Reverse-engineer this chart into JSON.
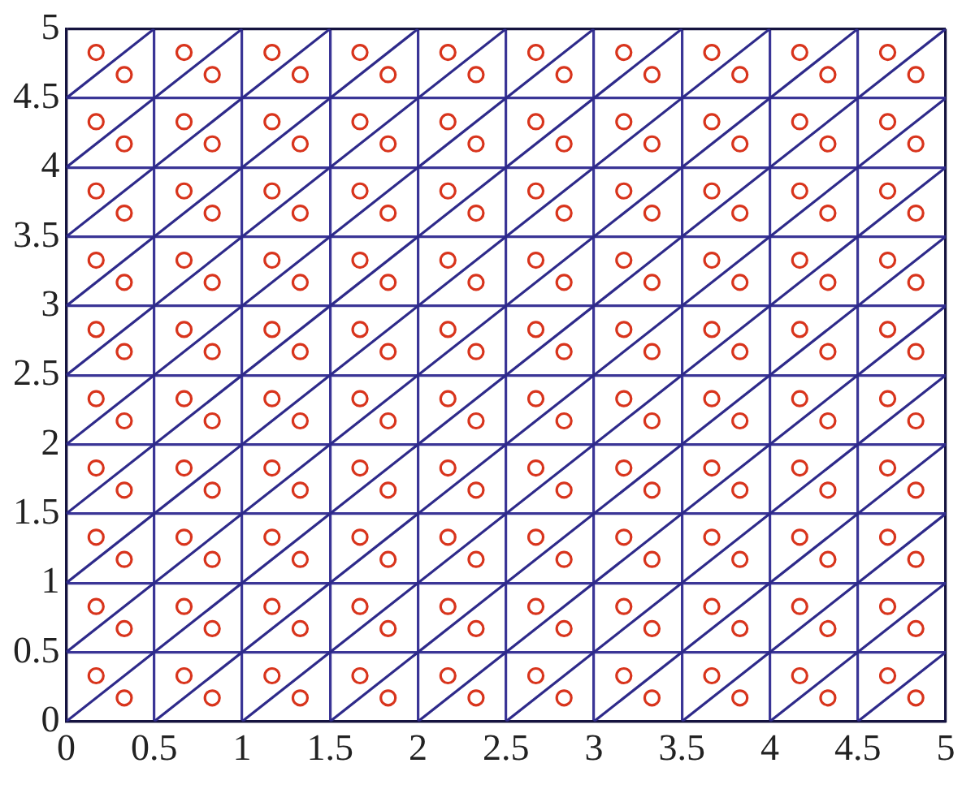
{
  "chart_data": {
    "type": "scatter",
    "marker": "circle",
    "grid": true,
    "xlim": [
      0,
      5
    ],
    "ylim": [
      0,
      5
    ],
    "xticks": [
      0,
      0.5,
      1,
      1.5,
      2,
      2.5,
      3,
      3.5,
      4,
      4.5,
      5
    ],
    "yticks": [
      0,
      0.5,
      1,
      1.5,
      2,
      2.5,
      3,
      3.5,
      4,
      4.5,
      5
    ],
    "series": [
      {
        "type": "line",
        "marker": "none",
        "color": "#2e2a8a",
        "x": [
          4.5,
          5
        ],
        "values": [
          0,
          0.5
        ]
      },
      {
        "type": "line",
        "marker": "none",
        "color": "#2e2a8a",
        "x": [
          4,
          5
        ],
        "values": [
          0,
          1
        ]
      },
      {
        "type": "line",
        "marker": "none",
        "color": "#2e2a8a",
        "x": [
          3.5,
          5
        ],
        "values": [
          0,
          1.5
        ]
      },
      {
        "type": "line",
        "marker": "none",
        "color": "#2e2a8a",
        "x": [
          3,
          5
        ],
        "values": [
          0,
          2
        ]
      },
      {
        "type": "line",
        "marker": "none",
        "color": "#2e2a8a",
        "x": [
          2.5,
          5
        ],
        "values": [
          0,
          2.5
        ]
      },
      {
        "type": "line",
        "marker": "none",
        "color": "#2e2a8a",
        "x": [
          2,
          5
        ],
        "values": [
          0,
          3
        ]
      },
      {
        "type": "line",
        "marker": "none",
        "color": "#2e2a8a",
        "x": [
          1.5,
          5
        ],
        "values": [
          0,
          3.5
        ]
      },
      {
        "type": "line",
        "marker": "none",
        "color": "#2e2a8a",
        "x": [
          1,
          5
        ],
        "values": [
          0,
          4
        ]
      },
      {
        "type": "line",
        "marker": "none",
        "color": "#2e2a8a",
        "x": [
          0.5,
          5
        ],
        "values": [
          0,
          4.5
        ]
      },
      {
        "type": "line",
        "marker": "none",
        "color": "#2e2a8a",
        "x": [
          0,
          5
        ],
        "values": [
          0,
          5
        ]
      },
      {
        "type": "line",
        "marker": "none",
        "color": "#2e2a8a",
        "x": [
          0,
          4.5
        ],
        "values": [
          0.5,
          5
        ]
      },
      {
        "type": "line",
        "marker": "none",
        "color": "#2e2a8a",
        "x": [
          0,
          4
        ],
        "values": [
          1,
          5
        ]
      },
      {
        "type": "line",
        "marker": "none",
        "color": "#2e2a8a",
        "x": [
          0,
          3.5
        ],
        "values": [
          1.5,
          5
        ]
      },
      {
        "type": "line",
        "marker": "none",
        "color": "#2e2a8a",
        "x": [
          0,
          3
        ],
        "values": [
          2,
          5
        ]
      },
      {
        "type": "line",
        "marker": "none",
        "color": "#2e2a8a",
        "x": [
          0,
          2.5
        ],
        "values": [
          2.5,
          5
        ]
      },
      {
        "type": "line",
        "marker": "none",
        "color": "#2e2a8a",
        "x": [
          0,
          2
        ],
        "values": [
          3,
          5
        ]
      },
      {
        "type": "line",
        "marker": "none",
        "color": "#2e2a8a",
        "x": [
          0,
          1.5
        ],
        "values": [
          3.5,
          5
        ]
      },
      {
        "type": "line",
        "marker": "none",
        "color": "#2e2a8a",
        "x": [
          0,
          1
        ],
        "values": [
          4,
          5
        ]
      },
      {
        "type": "line",
        "marker": "none",
        "color": "#2e2a8a",
        "x": [
          0,
          0.5
        ],
        "values": [
          4.5,
          5
        ]
      },
      {
        "color": "#d8341c",
        "x": [
          0.17,
          0.67,
          1.17,
          1.67,
          2.17,
          2.67,
          3.17,
          3.67,
          4.17,
          4.67
        ],
        "values": [
          0.33,
          0.33,
          0.33,
          0.33,
          0.33,
          0.33,
          0.33,
          0.33,
          0.33,
          0.33
        ]
      },
      {
        "color": "#d8341c",
        "x": [
          0.17,
          0.67,
          1.17,
          1.67,
          2.17,
          2.67,
          3.17,
          3.67,
          4.17,
          4.67
        ],
        "values": [
          0.83,
          0.83,
          0.83,
          0.83,
          0.83,
          0.83,
          0.83,
          0.83,
          0.83,
          0.83
        ]
      },
      {
        "color": "#d8341c",
        "x": [
          0.17,
          0.67,
          1.17,
          1.67,
          2.17,
          2.67,
          3.17,
          3.67,
          4.17,
          4.67
        ],
        "values": [
          1.33,
          1.33,
          1.33,
          1.33,
          1.33,
          1.33,
          1.33,
          1.33,
          1.33,
          1.33
        ]
      },
      {
        "color": "#d8341c",
        "x": [
          0.17,
          0.67,
          1.17,
          1.67,
          2.17,
          2.67,
          3.17,
          3.67,
          4.17,
          4.67
        ],
        "values": [
          1.83,
          1.83,
          1.83,
          1.83,
          1.83,
          1.83,
          1.83,
          1.83,
          1.83,
          1.83
        ]
      },
      {
        "color": "#d8341c",
        "x": [
          0.17,
          0.67,
          1.17,
          1.67,
          2.17,
          2.67,
          3.17,
          3.67,
          4.17,
          4.67
        ],
        "values": [
          2.33,
          2.33,
          2.33,
          2.33,
          2.33,
          2.33,
          2.33,
          2.33,
          2.33,
          2.33
        ]
      },
      {
        "color": "#d8341c",
        "x": [
          0.17,
          0.67,
          1.17,
          1.67,
          2.17,
          2.67,
          3.17,
          3.67,
          4.17,
          4.67
        ],
        "values": [
          2.83,
          2.83,
          2.83,
          2.83,
          2.83,
          2.83,
          2.83,
          2.83,
          2.83,
          2.83
        ]
      },
      {
        "color": "#d8341c",
        "x": [
          0.17,
          0.67,
          1.17,
          1.67,
          2.17,
          2.67,
          3.17,
          3.67,
          4.17,
          4.67
        ],
        "values": [
          3.33,
          3.33,
          3.33,
          3.33,
          3.33,
          3.33,
          3.33,
          3.33,
          3.33,
          3.33
        ]
      },
      {
        "color": "#d8341c",
        "x": [
          0.17,
          0.67,
          1.17,
          1.67,
          2.17,
          2.67,
          3.17,
          3.67,
          4.17,
          4.67
        ],
        "values": [
          3.83,
          3.83,
          3.83,
          3.83,
          3.83,
          3.83,
          3.83,
          3.83,
          3.83,
          3.83
        ]
      },
      {
        "color": "#d8341c",
        "x": [
          0.17,
          0.67,
          1.17,
          1.67,
          2.17,
          2.67,
          3.17,
          3.67,
          4.17,
          4.67
        ],
        "values": [
          4.33,
          4.33,
          4.33,
          4.33,
          4.33,
          4.33,
          4.33,
          4.33,
          4.33,
          4.33
        ]
      },
      {
        "color": "#d8341c",
        "x": [
          0.17,
          0.67,
          1.17,
          1.67,
          2.17,
          2.67,
          3.17,
          3.67,
          4.17,
          4.67
        ],
        "values": [
          4.83,
          4.83,
          4.83,
          4.83,
          4.83,
          4.83,
          4.83,
          4.83,
          4.83,
          4.83
        ]
      },
      {
        "color": "#d8341c",
        "x": [
          0.33,
          0.83,
          1.33,
          1.83,
          2.33,
          2.83,
          3.33,
          3.83,
          4.33,
          4.83
        ],
        "values": [
          0.17,
          0.17,
          0.17,
          0.17,
          0.17,
          0.17,
          0.17,
          0.17,
          0.17,
          0.17
        ]
      },
      {
        "color": "#d8341c",
        "x": [
          0.33,
          0.83,
          1.33,
          1.83,
          2.33,
          2.83,
          3.33,
          3.83,
          4.33,
          4.83
        ],
        "values": [
          0.67,
          0.67,
          0.67,
          0.67,
          0.67,
          0.67,
          0.67,
          0.67,
          0.67,
          0.67
        ]
      },
      {
        "color": "#d8341c",
        "x": [
          0.33,
          0.83,
          1.33,
          1.83,
          2.33,
          2.83,
          3.33,
          3.83,
          4.33,
          4.83
        ],
        "values": [
          1.17,
          1.17,
          1.17,
          1.17,
          1.17,
          1.17,
          1.17,
          1.17,
          1.17,
          1.17
        ]
      },
      {
        "color": "#d8341c",
        "x": [
          0.33,
          0.83,
          1.33,
          1.83,
          2.33,
          2.83,
          3.33,
          3.83,
          4.33,
          4.83
        ],
        "values": [
          1.67,
          1.67,
          1.67,
          1.67,
          1.67,
          1.67,
          1.67,
          1.67,
          1.67,
          1.67
        ]
      },
      {
        "color": "#d8341c",
        "x": [
          0.33,
          0.83,
          1.33,
          1.83,
          2.33,
          2.83,
          3.33,
          3.83,
          4.33,
          4.83
        ],
        "values": [
          2.17,
          2.17,
          2.17,
          2.17,
          2.17,
          2.17,
          2.17,
          2.17,
          2.17,
          2.17
        ]
      },
      {
        "color": "#d8341c",
        "x": [
          0.33,
          0.83,
          1.33,
          1.83,
          2.33,
          2.83,
          3.33,
          3.83,
          4.33,
          4.83
        ],
        "values": [
          2.67,
          2.67,
          2.67,
          2.67,
          2.67,
          2.67,
          2.67,
          2.67,
          2.67,
          2.67
        ]
      },
      {
        "color": "#d8341c",
        "x": [
          0.33,
          0.83,
          1.33,
          1.83,
          2.33,
          2.83,
          3.33,
          3.83,
          4.33,
          4.83
        ],
        "values": [
          3.17,
          3.17,
          3.17,
          3.17,
          3.17,
          3.17,
          3.17,
          3.17,
          3.17,
          3.17
        ]
      },
      {
        "color": "#d8341c",
        "x": [
          0.33,
          0.83,
          1.33,
          1.83,
          2.33,
          2.83,
          3.33,
          3.83,
          4.33,
          4.83
        ],
        "values": [
          3.67,
          3.67,
          3.67,
          3.67,
          3.67,
          3.67,
          3.67,
          3.67,
          3.67,
          3.67
        ]
      },
      {
        "color": "#d8341c",
        "x": [
          0.33,
          0.83,
          1.33,
          1.83,
          2.33,
          2.83,
          3.33,
          3.83,
          4.33,
          4.83
        ],
        "values": [
          4.17,
          4.17,
          4.17,
          4.17,
          4.17,
          4.17,
          4.17,
          4.17,
          4.17,
          4.17
        ]
      },
      {
        "color": "#d8341c",
        "x": [
          0.33,
          0.83,
          1.33,
          1.83,
          2.33,
          2.83,
          3.33,
          3.83,
          4.33,
          4.83
        ],
        "values": [
          4.67,
          4.67,
          4.67,
          4.67,
          4.67,
          4.67,
          4.67,
          4.67,
          4.67,
          4.67
        ]
      }
    ]
  }
}
